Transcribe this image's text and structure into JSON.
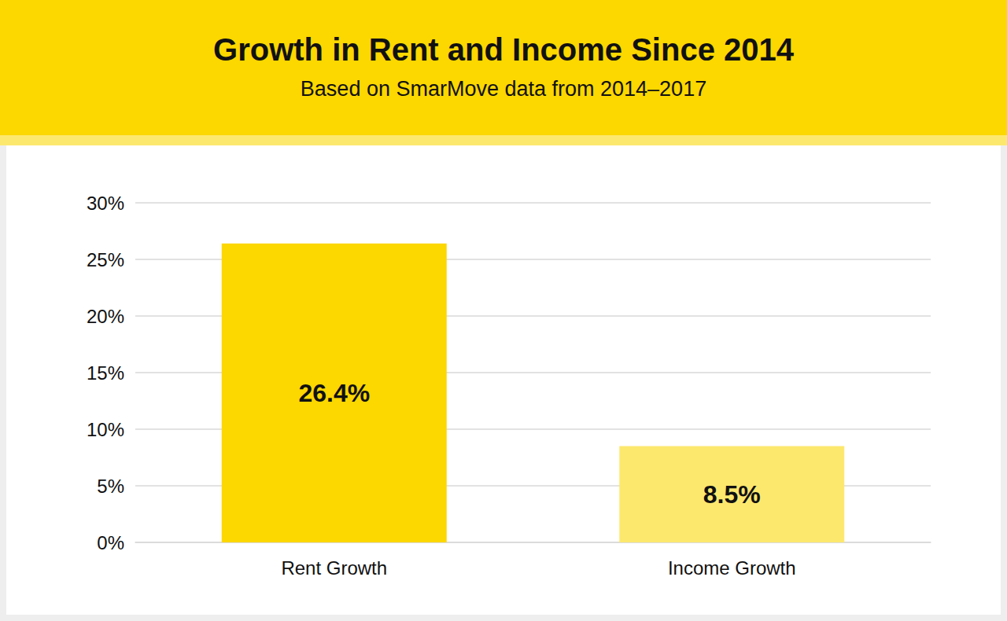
{
  "chart_data": {
    "type": "bar",
    "title": "Growth in Rent and Income Since 2014",
    "subtitle": "Based on SmarMove data from 2014–2017",
    "categories": [
      "Rent Growth",
      "Income Growth"
    ],
    "values": [
      26.4,
      8.5
    ],
    "value_labels": [
      "26.4%",
      "8.5%"
    ],
    "colors": [
      "#fcd700",
      "#fde86e"
    ],
    "ylim": [
      0,
      30
    ],
    "yticks": [
      {
        "value": 0,
        "label": "0%"
      },
      {
        "value": 5,
        "label": "5%"
      },
      {
        "value": 10,
        "label": "10%"
      },
      {
        "value": 15,
        "label": "15%"
      },
      {
        "value": 20,
        "label": "20%"
      },
      {
        "value": 25,
        "label": "25%"
      },
      {
        "value": 30,
        "label": "30%"
      }
    ],
    "grid": true,
    "data_labels": true
  }
}
